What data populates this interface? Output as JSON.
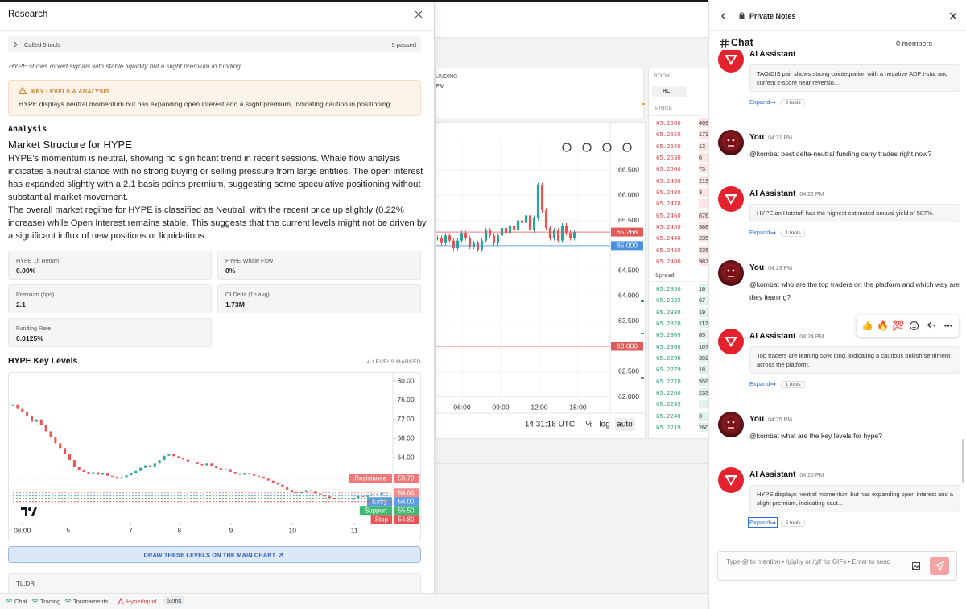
{
  "research": {
    "title": "Research",
    "tools": {
      "label": "Called 5 tools",
      "status": "5 passed"
    },
    "summary": "HYPE shows mixed signals with stable liquidity but a slight premium in funding.",
    "callout": {
      "title": "KEY LEVELS & ANALYSIS",
      "text": "HYPE displays neutral momentum but has expanding open interest and a slight premium, indicating caution in positioning."
    },
    "analysis": {
      "heading": "Analysis",
      "title": "Market Structure for HYPE",
      "paragraphs": [
        "HYPE's momentum is neutral, showing no significant trend in recent sessions. Whale flow analysis indicates a neutral stance with no strong buying or selling pressure from large entities. The open interest has expanded slightly with a 2.1 basis points premium, suggesting some speculative positioning without substantial market movement.",
        "The overall market regime for HYPE is classified as Neutral, with the recent price up slightly (0.22% increase) while Open Interest remains stable. This suggests that the current levels might not be driven by a significant influx of new positions or liquidations."
      ]
    },
    "metrics": [
      {
        "label": "HYPE 1h Return",
        "value": "0.00%"
      },
      {
        "label": "HYPE Whale Flow",
        "value": "0%"
      },
      {
        "label": "Premium (bps)",
        "value": "2.1"
      },
      {
        "label": "OI Delta (1h avg)",
        "value": "1.73M"
      },
      {
        "label": "Funding Rate",
        "value": "0.0125%"
      }
    ],
    "key_levels": {
      "title": "HYPE Key Levels",
      "note": "4 LEVELS MARKED",
      "chart_data": {
        "type": "candlestick",
        "values": [
          75.0,
          74.2,
          73.5,
          72.8,
          71.5,
          72.0,
          70.8,
          69.5,
          68.2,
          67.0,
          66.0,
          64.8,
          63.5,
          62.0,
          61.5,
          61.0,
          60.6,
          60.9,
          60.4,
          60.8,
          60.2,
          60.0,
          59.6,
          59.9,
          60.3,
          60.8,
          61.2,
          61.9,
          62.4,
          62.0,
          62.8,
          63.5,
          64.4,
          64.8,
          64.3,
          64.0,
          63.6,
          63.2,
          63.0,
          62.7,
          62.4,
          62.8,
          62.3,
          61.8,
          61.4,
          61.6,
          61.0,
          60.7,
          60.4,
          60.8,
          60.5,
          60.2,
          60.0,
          59.6,
          59.2,
          58.7,
          58.4,
          57.8,
          57.3,
          56.8,
          56.6,
          56.8,
          57.2,
          57.0,
          56.5,
          56.2,
          55.9,
          55.6,
          55.4,
          55.3,
          55.5,
          55.2,
          55.6,
          56.0,
          55.8,
          56.2,
          56.4,
          56.3,
          56.7,
          56.66
        ],
        "xlim": [
          0,
          80
        ],
        "xticks": [
          {
            "value": 2,
            "label": "06:00"
          },
          {
            "value": 11.7,
            "label": "5"
          },
          {
            "value": 24.9,
            "label": "7"
          },
          {
            "value": 35.2,
            "label": "8"
          },
          {
            "value": 46.1,
            "label": "9"
          },
          {
            "value": 59.1,
            "label": "10"
          },
          {
            "value": 72.2,
            "label": "11"
          }
        ],
        "ylim": [
          50,
          81.7
        ],
        "yticks": [
          {
            "value": 80,
            "label": "80.00"
          },
          {
            "value": 76,
            "label": "76.00"
          },
          {
            "value": 72,
            "label": "72.00"
          },
          {
            "value": 68,
            "label": "68.00"
          },
          {
            "value": 64,
            "label": "64.00"
          }
        ],
        "levels": [
          {
            "name": "Resistance",
            "value": 59.7,
            "value_label": "59.70",
            "color": "#ef7777"
          },
          {
            "value": 56.66,
            "value_label": "56.66",
            "color": "#f28b8b"
          },
          {
            "name": "Entry",
            "value": 56,
            "value_label": "56.00",
            "color": "#5b9bea"
          },
          {
            "name": "Support",
            "value": 55.5,
            "value_label": "55.50",
            "color": "#43b873"
          },
          {
            "name": "Stop",
            "value": 54.8,
            "value_label": "54.80",
            "color": "#e85454"
          }
        ],
        "up_color": "#26a69a",
        "down_color": "#ef5350"
      }
    },
    "button": "DRAW THESE LEVELS ON THE MAIN CHART",
    "tldr": "TL;DR"
  },
  "trading": {
    "fragments": [
      "UNDING",
      "PM"
    ],
    "chart_data": {
      "type": "candlestick",
      "values": [
        65.15,
        65.05,
        65.2,
        65.1,
        64.95,
        65.1,
        65.25,
        65.15,
        64.98,
        65.05,
        64.92,
        65.1,
        65.3,
        65.2,
        65.05,
        65.2,
        65.35,
        65.25,
        65.4,
        65.3,
        65.5,
        65.45,
        65.6,
        65.3,
        65.55,
        66.2,
        65.7,
        65.35,
        65.15,
        65.3,
        65.1,
        65.4,
        65.25,
        65.15,
        65.27
      ],
      "xlim": [
        0,
        43.4
      ],
      "xticks": [
        {
          "value": 6.6,
          "label": "06:00"
        },
        {
          "value": 16.2,
          "label": "09:00"
        },
        {
          "value": 25.8,
          "label": "12:00"
        },
        {
          "value": 35.4,
          "label": "15:00"
        }
      ],
      "ylim": [
        61.9,
        67.14
      ],
      "yticks": [
        {
          "value": 66.5,
          "label": "66.500"
        },
        {
          "value": 66,
          "label": "66.000"
        },
        {
          "value": 65.5,
          "label": "65.500"
        },
        {
          "value": 65,
          "label": "65.000"
        },
        {
          "value": 64.5,
          "label": "64.500"
        },
        {
          "value": 64,
          "label": "64.000"
        },
        {
          "value": 63.5,
          "label": "63.500"
        },
        {
          "value": 63,
          "label": "63.000"
        },
        {
          "value": 62.5,
          "label": "62.500"
        },
        {
          "value": 62,
          "label": "62.000"
        }
      ],
      "price_lines": [
        {
          "value": 65.268,
          "value_label": "65.268",
          "color": "#e05a5a"
        },
        {
          "value": 65,
          "value_label": "65.000",
          "color": "#4a90e2"
        },
        {
          "value": 63,
          "value_label": "63.000",
          "color": "#e05a5a"
        }
      ],
      "grid": true,
      "up_color": "#26a69a",
      "down_color": "#ef5350"
    },
    "time": "14:31:18 UTC",
    "scale_options": [
      "%",
      "log",
      "auto"
    ],
    "book": {
      "title": "BOOK",
      "source": "HL",
      "column": "PRICE",
      "spread": "Spread",
      "asks": [
        [
          "65.2560",
          "469"
        ],
        [
          "65.2550",
          "173"
        ],
        [
          "65.2540",
          "13"
        ],
        [
          "65.2530",
          "6"
        ],
        [
          "65.2500",
          "73"
        ],
        [
          "65.2490",
          "219"
        ],
        [
          "65.2480",
          "3"
        ],
        [
          "65.2470"
        ],
        [
          "65.2460",
          "676"
        ],
        [
          "65.2450",
          "388"
        ],
        [
          "65.2440",
          "235"
        ],
        [
          "65.2430",
          "235"
        ],
        [
          "65.2400",
          "987"
        ]
      ],
      "bids": [
        [
          "65.2350",
          "16"
        ],
        [
          "65.2339",
          "67"
        ],
        [
          "65.2330",
          "19"
        ],
        [
          "65.2320",
          "112"
        ],
        [
          "65.2309",
          "85"
        ],
        [
          "65.2300",
          "107"
        ],
        [
          "65.2290",
          "392"
        ],
        [
          "65.2279",
          "18"
        ],
        [
          "65.2270",
          "559"
        ],
        [
          "65.2260",
          "233"
        ],
        [
          "65.2249"
        ],
        [
          "65.2240",
          "3"
        ],
        [
          "65.2219",
          "260"
        ]
      ]
    }
  },
  "chat": {
    "header": "Private Notes",
    "channel": "Chat",
    "members": "0 members",
    "messages": [
      {
        "author": "AI Assistant",
        "text": "TAO/DIS pair shows strong cointegration with a negative ADF t-stat and current z-score near reversio...",
        "expand": "Expand",
        "tools": "2 tools"
      },
      {
        "author": "You",
        "time": "04:21 PM",
        "text": "@kombat best delta-neutral funding carry trades right now?"
      },
      {
        "author": "AI Assistant",
        "time": "04:22 PM",
        "text": "HYPE on Hotstuff has the highest estimated annual yield of 587%.",
        "expand": "Expand",
        "tools": "1 tools"
      },
      {
        "author": "You",
        "time": "04:23 PM",
        "text": "@kombat who are the top traders on the platform and which way are they leaning?"
      },
      {
        "author": "AI Assistant",
        "time": "04:24 PM",
        "text": "Top traders are leaning 55% long, indicating a cautious bullish sentiment across the platform.",
        "expand": "Expand",
        "tools": "1 tools"
      },
      {
        "author": "You",
        "time": "04:25 PM",
        "text": "@kombat what are the key levels for hype?"
      },
      {
        "author": "AI Assistant",
        "time": "04:25 PM",
        "text": "HYPE displays neutral momentum but has expanding open interest and a slight premium, indicating caut...",
        "expand": "Expand",
        "tools": "5 tools"
      }
    ],
    "reactions": [
      "👍",
      "🔥",
      "💯"
    ],
    "input_placeholder": "Type @ to mention • /giphy or /gif for GIFs • Enter to send"
  },
  "status_bar": {
    "tabs": [
      "Chat",
      "Trading",
      "Tournaments"
    ],
    "exchange": "Hyperliquid",
    "latency": "52ms"
  }
}
